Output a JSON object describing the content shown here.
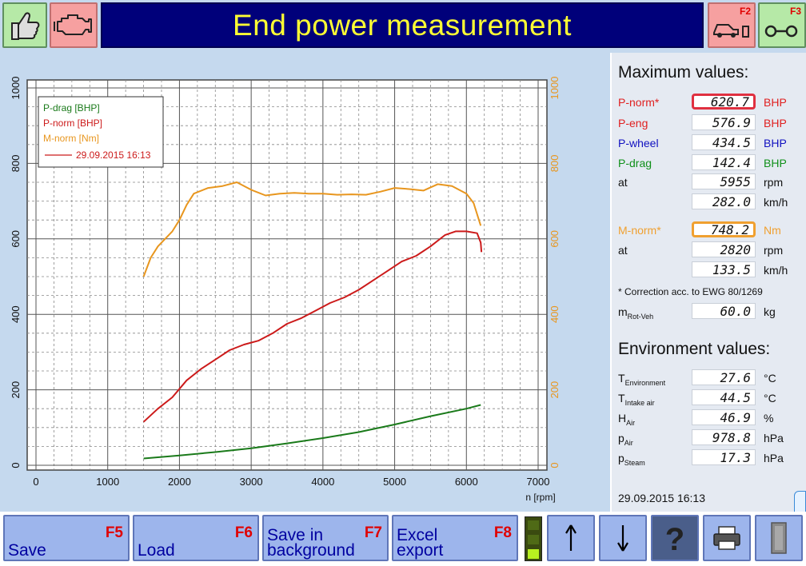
{
  "header": {
    "title": "End power measurement",
    "btn_f2": "F2",
    "btn_f3": "F3"
  },
  "chart_data": {
    "type": "line",
    "xlabel": "n [rpm]",
    "xlim": [
      0,
      7000
    ],
    "x_ticks": [
      "0",
      "1000",
      "2000",
      "3000",
      "4000",
      "5000",
      "6000",
      "7000"
    ],
    "ylim_left": [
      0,
      1000
    ],
    "y_ticks_left": [
      "0",
      "200",
      "400",
      "600",
      "800",
      "1000"
    ],
    "ylim_right": [
      0,
      1000
    ],
    "y_ticks_right": [
      "0",
      "200",
      "400",
      "600",
      "800",
      "1000"
    ],
    "grid": true,
    "legend_position": "top-left",
    "legend": [
      "P-drag [BHP]",
      "P-norm [BHP]",
      "M-norm [Nm]"
    ],
    "legend_run": "29.09.2015 16:13",
    "colors": {
      "p_drag": "#1a7a1a",
      "p_norm": "#cc1a1a",
      "m_norm": "#e8961e",
      "run_line": "#cc1a1a"
    },
    "series": [
      {
        "name": "P-drag [BHP]",
        "axis": "left",
        "x": [
          1500,
          2000,
          2500,
          3000,
          3500,
          4000,
          4500,
          5000,
          5500,
          6000,
          6200
        ],
        "values": [
          18,
          26,
          35,
          45,
          58,
          72,
          88,
          108,
          130,
          150,
          160
        ]
      },
      {
        "name": "P-norm [BHP]",
        "axis": "left",
        "x": [
          1500,
          1700,
          1900,
          2100,
          2300,
          2500,
          2700,
          2900,
          3100,
          3300,
          3500,
          3700,
          3900,
          4100,
          4300,
          4500,
          4700,
          4900,
          5100,
          5300,
          5500,
          5700,
          5850,
          6000,
          6150,
          6200,
          6210
        ],
        "values": [
          115,
          150,
          180,
          225,
          255,
          280,
          305,
          320,
          330,
          350,
          375,
          390,
          410,
          430,
          445,
          465,
          490,
          515,
          540,
          555,
          580,
          610,
          620,
          620,
          615,
          590,
          565
        ]
      },
      {
        "name": "M-norm [Nm]",
        "axis": "right",
        "x": [
          1500,
          1600,
          1700,
          1800,
          1900,
          2000,
          2100,
          2200,
          2400,
          2600,
          2800,
          3000,
          3200,
          3400,
          3600,
          3800,
          4000,
          4200,
          4400,
          4600,
          4800,
          5000,
          5200,
          5400,
          5600,
          5800,
          6000,
          6100,
          6200
        ],
        "values": [
          500,
          550,
          580,
          600,
          620,
          650,
          690,
          720,
          735,
          740,
          750,
          730,
          715,
          720,
          722,
          720,
          720,
          717,
          718,
          717,
          725,
          735,
          732,
          728,
          745,
          740,
          720,
          695,
          635
        ]
      }
    ]
  },
  "max_values": {
    "title": "Maximum values:",
    "rows": [
      {
        "label": "P-norm*",
        "value": "620.7",
        "unit": "BHP"
      },
      {
        "label": "P-eng",
        "value": "576.9",
        "unit": "BHP"
      },
      {
        "label": "P-wheel",
        "value": "434.5",
        "unit": "BHP"
      },
      {
        "label": "P-drag",
        "value": "142.4",
        "unit": "BHP"
      },
      {
        "label": "at",
        "value": "5955",
        "unit": "rpm"
      },
      {
        "label": "",
        "value": "282.0",
        "unit": "km/h"
      },
      {
        "label": "M-norm*",
        "value": "748.2",
        "unit": "Nm"
      },
      {
        "label": "at",
        "value": "2820",
        "unit": "rpm"
      },
      {
        "label": "",
        "value": "133.5",
        "unit": "km/h"
      }
    ],
    "note": "* Correction acc. to EWG 80/1269",
    "mass": {
      "label": "m",
      "sub": "Rot-Veh",
      "value": "60.0",
      "unit": "kg"
    }
  },
  "env_values": {
    "title": "Environment values:",
    "rows": [
      {
        "label": "T",
        "sub": "Environment",
        "value": "27.6",
        "unit": "°C"
      },
      {
        "label": "T",
        "sub": "Intake air",
        "value": "44.5",
        "unit": "°C"
      },
      {
        "label": "H",
        "sub": "Air",
        "value": "46.9",
        "unit": "%"
      },
      {
        "label": "p",
        "sub": "Air",
        "value": "978.8",
        "unit": "hPa"
      },
      {
        "label": "p",
        "sub": "Steam",
        "value": "17.3",
        "unit": "hPa"
      }
    ]
  },
  "footer_datetime": "29.09.2015   16:13",
  "toolbar": {
    "save_key": "F5",
    "save_label": "Save",
    "load_key": "F6",
    "load_label": "Load",
    "savebg_key": "F7",
    "savebg_label_1": "Save in",
    "savebg_label_2": "background",
    "excel_key": "F8",
    "excel_label_1": "Excel",
    "excel_label_2": "export"
  },
  "icons": {
    "thumbs_up": "thumbs-up-icon",
    "engine": "engine-icon",
    "car_roller": "car-roller-icon",
    "rollers": "rollers-icon",
    "up": "arrow-up-icon",
    "down": "arrow-down-icon",
    "help": "help-icon",
    "print": "printer-icon",
    "exit": "exit-door-icon"
  }
}
